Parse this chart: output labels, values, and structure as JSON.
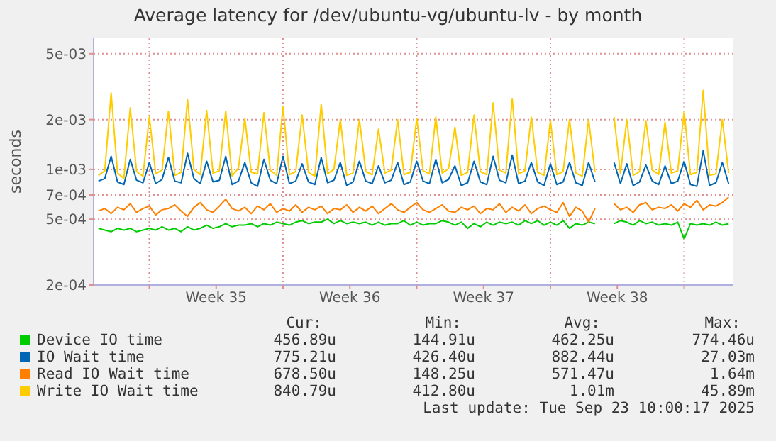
{
  "chart_data": {
    "type": "line",
    "title": "Average latency for /dev/ubuntu-vg/ubuntu-lv - by month",
    "ylabel": "seconds",
    "x": [
      "2025-08-22T08:00",
      "2025-08-22T16:00",
      "2025-08-23T00:00",
      "2025-08-23T08:00",
      "2025-08-23T16:00",
      "2025-08-24T00:00",
      "2025-08-24T08:00",
      "2025-08-24T16:00",
      "2025-08-25T00:00",
      "2025-08-25T08:00",
      "2025-08-25T16:00",
      "2025-08-26T00:00",
      "2025-08-26T08:00",
      "2025-08-26T16:00",
      "2025-08-27T00:00",
      "2025-08-27T08:00",
      "2025-08-27T16:00",
      "2025-08-28T00:00",
      "2025-08-28T08:00",
      "2025-08-28T16:00",
      "2025-08-29T00:00",
      "2025-08-29T08:00",
      "2025-08-29T16:00",
      "2025-08-30T00:00",
      "2025-08-30T08:00",
      "2025-08-30T16:00",
      "2025-08-31T00:00",
      "2025-08-31T08:00",
      "2025-08-31T16:00",
      "2025-09-01T00:00",
      "2025-09-01T08:00",
      "2025-09-01T16:00",
      "2025-09-02T00:00",
      "2025-09-02T08:00",
      "2025-09-02T16:00",
      "2025-09-03T00:00",
      "2025-09-03T08:00",
      "2025-09-03T16:00",
      "2025-09-04T00:00",
      "2025-09-04T08:00",
      "2025-09-04T16:00",
      "2025-09-05T00:00",
      "2025-09-05T08:00",
      "2025-09-05T16:00",
      "2025-09-06T00:00",
      "2025-09-06T08:00",
      "2025-09-06T16:00",
      "2025-09-07T00:00",
      "2025-09-07T08:00",
      "2025-09-07T16:00",
      "2025-09-08T00:00",
      "2025-09-08T08:00",
      "2025-09-08T16:00",
      "2025-09-09T00:00",
      "2025-09-09T08:00",
      "2025-09-09T16:00",
      "2025-09-10T00:00",
      "2025-09-10T08:00",
      "2025-09-10T16:00",
      "2025-09-11T00:00",
      "2025-09-11T08:00",
      "2025-09-11T16:00",
      "2025-09-12T00:00",
      "2025-09-12T08:00",
      "2025-09-12T16:00",
      "2025-09-13T00:00",
      "2025-09-13T08:00",
      "2025-09-13T16:00",
      "2025-09-14T00:00",
      "2025-09-14T08:00",
      "2025-09-14T16:00",
      "2025-09-15T00:00",
      "2025-09-15T08:00",
      "2025-09-15T16:00",
      "2025-09-16T00:00",
      "2025-09-16T08:00",
      "2025-09-16T16:00",
      "2025-09-17T00:00",
      "2025-09-17T08:00",
      "2025-09-17T16:00",
      "2025-09-18T00:00",
      "2025-09-18T08:00",
      "2025-09-18T16:00",
      "2025-09-19T00:00",
      "2025-09-19T08:00",
      "2025-09-19T16:00",
      "2025-09-20T00:00",
      "2025-09-20T08:00",
      "2025-09-20T16:00",
      "2025-09-21T00:00",
      "2025-09-21T08:00",
      "2025-09-21T16:00",
      "2025-09-22T00:00",
      "2025-09-22T08:00",
      "2025-09-22T16:00",
      "2025-09-23T00:00",
      "2025-09-23T08:00",
      "2025-09-23T16:00",
      "2025-09-24T00:00",
      "2025-09-24T08:00"
    ],
    "series": [
      {
        "name": "Device IO time",
        "color": "#00cc00",
        "values": [
          0.00044,
          0.00043,
          0.00042,
          0.00044,
          0.00043,
          0.00044,
          0.00042,
          0.00043,
          0.00044,
          0.00043,
          0.00045,
          0.00043,
          0.00044,
          0.00042,
          0.00045,
          0.00043,
          0.00044,
          0.00046,
          0.00044,
          0.00045,
          0.00047,
          0.00045,
          0.00046,
          0.00046,
          0.00047,
          0.00045,
          0.00047,
          0.00046,
          0.00048,
          0.00047,
          0.00046,
          0.00048,
          0.00049,
          0.00047,
          0.00048,
          0.00048,
          0.0005,
          0.00047,
          0.00049,
          0.00047,
          0.00048,
          0.00047,
          0.00048,
          0.00046,
          0.00048,
          0.00046,
          0.00047,
          0.00047,
          0.00049,
          0.00046,
          0.00048,
          0.00046,
          0.00047,
          0.00047,
          0.00049,
          0.00048,
          0.00046,
          0.00048,
          0.00044,
          0.00047,
          0.00045,
          0.00048,
          0.00046,
          0.00048,
          0.00047,
          0.00048,
          0.00046,
          0.00049,
          0.00047,
          0.00049,
          0.00046,
          0.00048,
          0.00046,
          0.00049,
          0.00044,
          0.00047,
          0.00046,
          0.00048,
          0.00047,
          null,
          null,
          0.00047,
          0.00049,
          0.00048,
          0.00046,
          0.00049,
          0.00047,
          0.00048,
          0.00046,
          0.00047,
          0.00046,
          0.00048,
          0.00038,
          0.00047,
          0.00046,
          0.00047,
          0.00046,
          0.00048,
          0.00046,
          0.00047
        ]
      },
      {
        "name": "IO Wait time",
        "color": "#0066b3",
        "values": [
          0.00085,
          0.00088,
          0.0012,
          0.00084,
          0.00081,
          0.00115,
          0.00086,
          0.00083,
          0.0011,
          0.00082,
          0.00087,
          0.00118,
          0.00085,
          0.00083,
          0.00125,
          0.00088,
          0.00082,
          0.00112,
          0.00084,
          0.00086,
          0.0012,
          0.00081,
          0.00085,
          0.0011,
          0.00083,
          0.00079,
          0.00115,
          0.00086,
          0.00082,
          0.0012,
          0.00082,
          0.00085,
          0.00108,
          0.00084,
          0.00081,
          0.00118,
          0.00083,
          0.00086,
          0.0011,
          0.0008,
          0.00084,
          0.00112,
          0.00085,
          0.00082,
          0.00105,
          0.00083,
          0.00086,
          0.0011,
          0.00081,
          0.00084,
          0.00112,
          0.00085,
          0.00082,
          0.00115,
          0.00083,
          0.00087,
          0.00105,
          0.0008,
          0.00083,
          0.00112,
          0.00084,
          0.00081,
          0.0012,
          0.00086,
          0.00083,
          0.00122,
          0.00082,
          0.00085,
          0.0011,
          0.00084,
          0.0008,
          0.00108,
          0.00081,
          0.00084,
          0.0011,
          0.00083,
          0.0008,
          0.0011,
          0.00084,
          null,
          null,
          0.0011,
          0.00082,
          0.00108,
          0.0008,
          0.00084,
          0.00106,
          0.00085,
          0.00081,
          0.00105,
          0.00082,
          0.00085,
          0.00112,
          0.00081,
          0.00079,
          0.0013,
          0.0008,
          0.00083,
          0.0011,
          0.00082
        ]
      },
      {
        "name": "Read IO Wait time",
        "color": "#ff8000",
        "values": [
          0.00056,
          0.00058,
          0.00054,
          0.00059,
          0.00057,
          0.00062,
          0.00055,
          0.00058,
          0.0006,
          0.00053,
          0.00057,
          0.00058,
          0.00061,
          0.00056,
          0.00052,
          0.00059,
          0.00063,
          0.00057,
          0.00055,
          0.0006,
          0.00066,
          0.00058,
          0.00056,
          0.00059,
          0.00054,
          0.0006,
          0.00057,
          0.00062,
          0.00055,
          0.00058,
          0.00056,
          0.00061,
          0.00055,
          0.00059,
          0.00057,
          0.0006,
          0.00054,
          0.00058,
          0.00057,
          0.00061,
          0.00055,
          0.00059,
          0.00056,
          0.0006,
          0.00054,
          0.00058,
          0.00062,
          0.00057,
          0.00055,
          0.00059,
          0.00063,
          0.00057,
          0.00055,
          0.00058,
          0.00061,
          0.00056,
          0.00055,
          0.00059,
          0.00057,
          0.0006,
          0.00054,
          0.00058,
          0.00057,
          0.00062,
          0.00055,
          0.00059,
          0.00056,
          0.00061,
          0.00054,
          0.00058,
          0.0006,
          0.00057,
          0.00055,
          0.00063,
          0.00052,
          0.00059,
          0.00056,
          0.00048,
          0.00058,
          null,
          null,
          0.00062,
          0.00057,
          0.00059,
          0.00055,
          0.00061,
          0.00063,
          0.00057,
          0.00059,
          0.00058,
          0.00061,
          0.00056,
          0.00062,
          0.00059,
          0.00065,
          0.00057,
          0.00061,
          0.0006,
          0.00063,
          0.00068
        ]
      },
      {
        "name": "Write IO Wait time",
        "color": "#ffcc00",
        "values": [
          0.00092,
          0.00098,
          0.0029,
          0.00095,
          0.00088,
          0.00235,
          0.00097,
          0.00091,
          0.00208,
          0.00094,
          0.00099,
          0.00224,
          0.00092,
          0.00096,
          0.00264,
          0.001,
          0.00093,
          0.00227,
          0.00095,
          0.00098,
          0.00225,
          0.00091,
          0.00102,
          0.00203,
          0.00096,
          0.00094,
          0.0022,
          0.00099,
          0.00092,
          0.0024,
          0.00093,
          0.00097,
          0.00213,
          0.00096,
          0.00091,
          0.00248,
          0.00094,
          0.001,
          0.002,
          0.00092,
          0.00095,
          0.002,
          0.00097,
          0.00093,
          0.00175,
          0.00095,
          0.00099,
          0.002,
          0.00093,
          0.00096,
          0.00203,
          0.00098,
          0.00094,
          0.00207,
          0.00095,
          0.00101,
          0.0018,
          0.00092,
          0.00096,
          0.00213,
          0.00097,
          0.00093,
          0.00252,
          0.00099,
          0.00095,
          0.00268,
          0.00094,
          0.00098,
          0.00207,
          0.00096,
          0.00092,
          0.00197,
          0.00093,
          0.00097,
          0.002,
          0.00095,
          0.00091,
          0.002,
          0.00096,
          null,
          null,
          0.00207,
          0.00094,
          0.002,
          0.00092,
          0.00097,
          0.00197,
          0.00099,
          0.00093,
          0.00193,
          0.00095,
          0.00098,
          0.00224,
          0.00093,
          0.00096,
          0.003,
          0.00092,
          0.00094,
          0.002,
          0.00095
        ]
      }
    ],
    "xlim": [
      "2025-08-22T02:00",
      "2025-09-24T14:00"
    ],
    "xticks": [
      {
        "value": "2025-08-25T00:00",
        "label": null
      },
      {
        "value": "2025-08-28T12:00",
        "label": "Week 35"
      },
      {
        "value": "2025-09-01T00:00",
        "label": null
      },
      {
        "value": "2025-09-04T12:00",
        "label": "Week 36"
      },
      {
        "value": "2025-09-08T00:00",
        "label": null
      },
      {
        "value": "2025-09-11T12:00",
        "label": "Week 37"
      },
      {
        "value": "2025-09-15T00:00",
        "label": null
      },
      {
        "value": "2025-09-18T12:00",
        "label": "Week 38"
      },
      {
        "value": "2025-09-22T00:00",
        "label": null
      }
    ],
    "ylim": [
      0.0002,
      0.0062
    ],
    "yticks": [
      {
        "value": 0.0002,
        "label": "2e-04"
      },
      {
        "value": 0.0005,
        "label": "5e-04"
      },
      {
        "value": 0.0007,
        "label": "7e-04"
      },
      {
        "value": 0.001,
        "label": "1e-03"
      },
      {
        "value": 0.002,
        "label": "2e-03"
      },
      {
        "value": 0.005,
        "label": "5e-03"
      }
    ],
    "log": true,
    "grid": true,
    "legend": "bottom",
    "annotations": [
      "Cur:",
      "Min:",
      "Avg:",
      "Max:",
      "456.89u",
      "144.91u",
      "462.25u",
      "774.46u",
      "775.21u",
      "426.40u",
      "882.44u",
      "27.03m",
      "678.50u",
      "148.25u",
      "571.47u",
      "1.64m",
      "840.79u",
      "412.80u",
      "1.01m",
      "45.89m",
      "Last update: Tue Sep 23 10:00:17 2025"
    ]
  }
}
